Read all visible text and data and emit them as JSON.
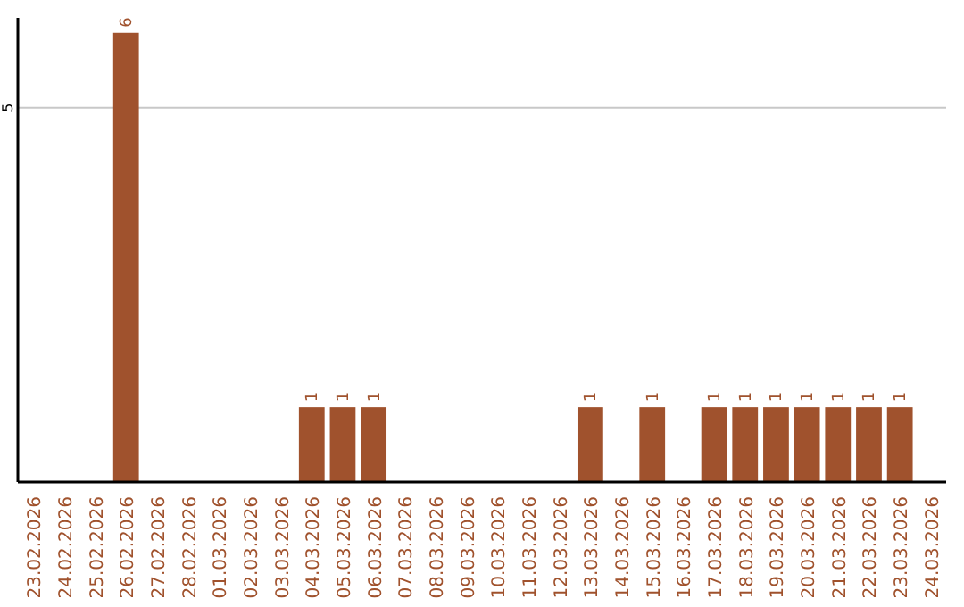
{
  "chart_data": {
    "type": "bar",
    "categories": [
      "23.02.2026",
      "24.02.2026",
      "25.02.2026",
      "26.02.2026",
      "27.02.2026",
      "28.02.2026",
      "01.03.2026",
      "02.03.2026",
      "03.03.2026",
      "04.03.2026",
      "05.03.2026",
      "06.03.2026",
      "07.03.2026",
      "08.03.2026",
      "09.03.2026",
      "10.03.2026",
      "11.03.2026",
      "12.03.2026",
      "13.03.2026",
      "14.03.2026",
      "15.03.2026",
      "16.03.2026",
      "17.03.2026",
      "18.03.2026",
      "19.03.2026",
      "20.03.2026",
      "21.03.2026",
      "22.03.2026",
      "23.03.2026",
      "24.03.2026"
    ],
    "values": [
      0,
      0,
      0,
      6,
      0,
      0,
      0,
      0,
      0,
      1,
      1,
      1,
      0,
      0,
      0,
      0,
      0,
      0,
      1,
      0,
      1,
      0,
      1,
      1,
      1,
      1,
      1,
      1,
      1,
      0
    ],
    "value_labels": [
      null,
      null,
      null,
      "6",
      null,
      null,
      null,
      null,
      null,
      "1",
      "1",
      "1",
      null,
      null,
      null,
      null,
      null,
      null,
      "1",
      null,
      "1",
      null,
      "1",
      "1",
      "1",
      "1",
      "1",
      "1",
      "1",
      null
    ],
    "color": "#a0522d",
    "ylim": [
      0,
      6.2
    ],
    "yticks": [
      5
    ],
    "grid": "y"
  }
}
